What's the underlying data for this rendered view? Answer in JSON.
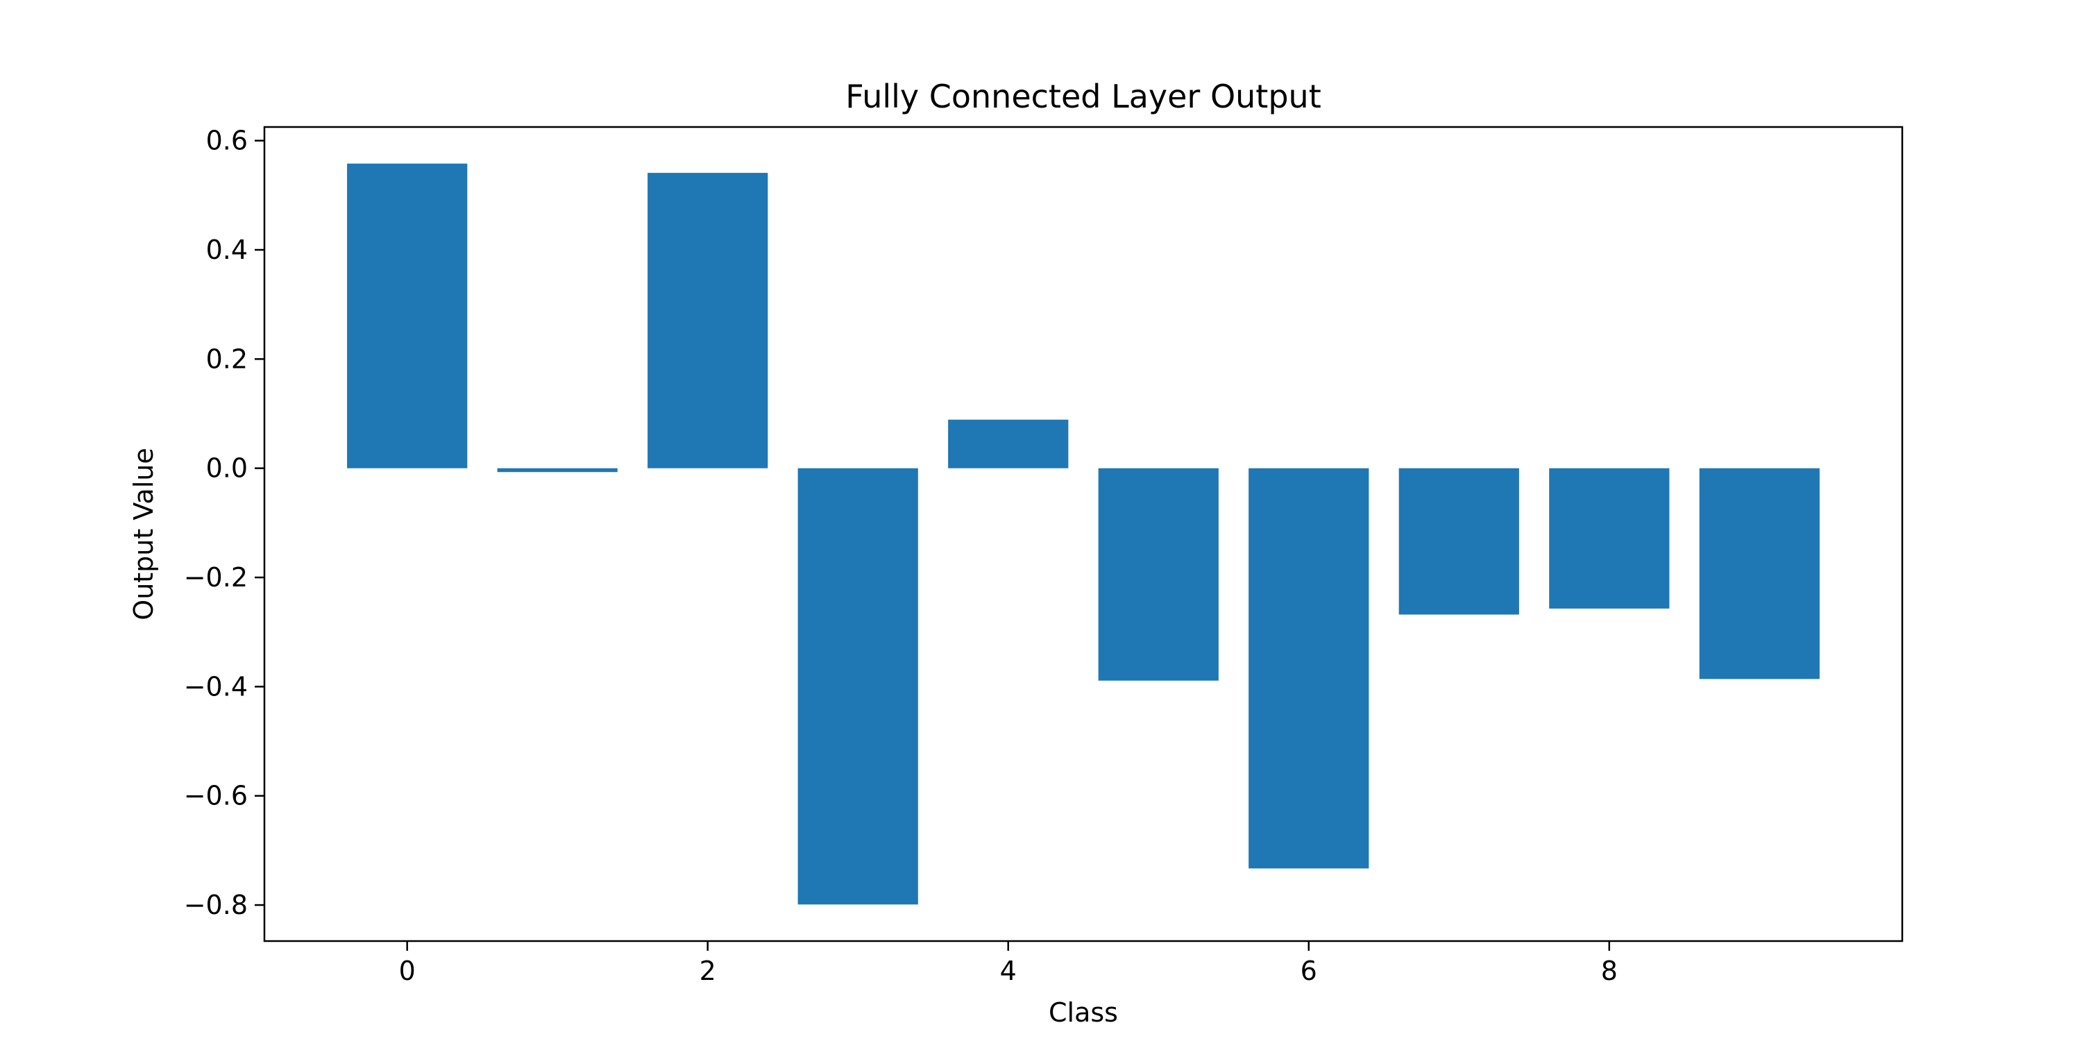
{
  "chart_data": {
    "type": "bar",
    "title": "Fully Connected Layer Output",
    "xlabel": "Class",
    "ylabel": "Output Value",
    "categories": [
      0,
      1,
      2,
      3,
      4,
      5,
      6,
      7,
      8,
      9
    ],
    "values": [
      0.558,
      -0.007,
      0.541,
      -0.799,
      0.089,
      -0.389,
      -0.733,
      -0.268,
      -0.257,
      -0.386
    ],
    "xlim": [
      -0.95,
      9.95
    ],
    "ylim": [
      -0.866,
      0.625
    ],
    "xticks": [
      0,
      2,
      4,
      6,
      8
    ],
    "xtick_labels": [
      "0",
      "2",
      "4",
      "6",
      "8"
    ],
    "yticks": [
      -0.8,
      -0.6,
      -0.4,
      -0.2,
      0.0,
      0.2,
      0.4,
      0.6
    ],
    "ytick_labels": [
      "−0.8",
      "−0.6",
      "−0.4",
      "−0.2",
      "0.0",
      "0.2",
      "0.4",
      "0.6"
    ],
    "bar_color": "#1f77b4",
    "grid": false,
    "legend": "none"
  }
}
